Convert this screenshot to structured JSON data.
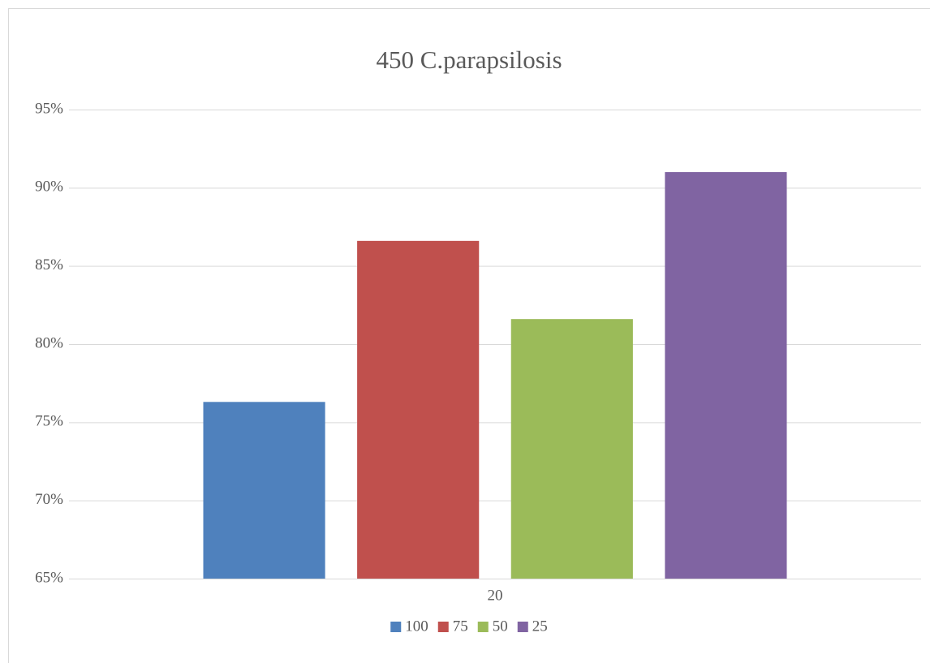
{
  "chart_data": {
    "type": "bar",
    "title": "450 C.parapsilosis",
    "categories": [
      "20"
    ],
    "series": [
      {
        "name": "100",
        "color": "#4f81bd",
        "values": [
          76.3
        ]
      },
      {
        "name": "75",
        "color": "#c0504d",
        "values": [
          86.6
        ]
      },
      {
        "name": "50",
        "color": "#9bbb59",
        "values": [
          81.6
        ]
      },
      {
        "name": "25",
        "color": "#8064a2",
        "values": [
          91.0
        ]
      }
    ],
    "ylim": [
      65,
      95
    ],
    "yticks": [
      {
        "value": 65,
        "label": "65%"
      },
      {
        "value": 70,
        "label": "70%"
      },
      {
        "value": 75,
        "label": "75%"
      },
      {
        "value": 80,
        "label": "80%"
      },
      {
        "value": 85,
        "label": "85%"
      },
      {
        "value": 90,
        "label": "90%"
      },
      {
        "value": 95,
        "label": "95%"
      }
    ],
    "grid": true,
    "legend": "bottom"
  }
}
